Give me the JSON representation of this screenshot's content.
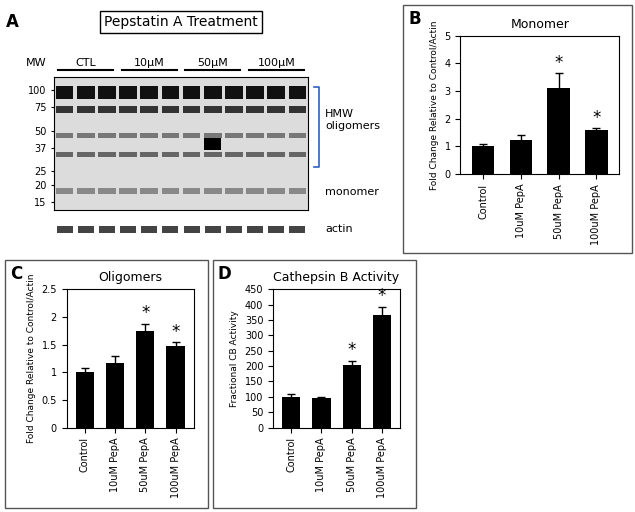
{
  "chart_data": [
    {
      "type": "blot",
      "panel": "A",
      "title": "Pepstatin A Treatment",
      "y_label": "MW",
      "lanes": [
        "CTL",
        "10μM",
        "50μM",
        "100μM"
      ],
      "ylim": [
        13,
        125
      ],
      "yticks": [
        100,
        75,
        50,
        37,
        25,
        20,
        15
      ],
      "log": "y",
      "annotations": [
        "HMW oligomers",
        "monomer",
        "actin"
      ]
    },
    {
      "type": "bar",
      "panel": "B",
      "title": "Monomer",
      "y_label": "Fold Change Relative to Control/Actin",
      "categories": [
        "Control",
        "10uM PepA",
        "50uM PepA",
        "100uM PepA"
      ],
      "values": [
        1.0,
        1.25,
        3.1,
        1.6
      ],
      "errors": [
        0.1,
        0.15,
        0.55,
        0.07
      ],
      "significance": [
        null,
        null,
        "*",
        "*"
      ],
      "color": "#000000",
      "ylim": [
        0,
        5
      ],
      "yticks": [
        0,
        1,
        2,
        3,
        4,
        5
      ]
    },
    {
      "type": "bar",
      "panel": "C",
      "title": "Oligomers",
      "y_label": "Fold Change Relative to Control/Actin",
      "categories": [
        "Control",
        "10uM PepA",
        "50uM PepA",
        "100uM PepA"
      ],
      "values": [
        1.0,
        1.17,
        1.75,
        1.47
      ],
      "errors": [
        0.08,
        0.12,
        0.13,
        0.07
      ],
      "significance": [
        null,
        null,
        "*",
        "*"
      ],
      "color": "#000000",
      "ylim": [
        0,
        2.5
      ],
      "yticks": [
        0,
        0.5,
        1,
        1.5,
        2,
        2.5
      ]
    },
    {
      "type": "bar",
      "panel": "D",
      "title": "Cathepsin B Activity",
      "y_label": "Fractional CB Activity",
      "categories": [
        "Control",
        "10uM PepA",
        "50uM PepA",
        "100uM PepA"
      ],
      "values": [
        100,
        95,
        205,
        365
      ],
      "errors": [
        8,
        4,
        12,
        28
      ],
      "significance": [
        null,
        null,
        "*",
        "*"
      ],
      "color": "#000000",
      "ylim": [
        0,
        450
      ],
      "yticks": [
        0,
        50,
        100,
        150,
        200,
        250,
        300,
        350,
        400,
        450
      ]
    }
  ]
}
